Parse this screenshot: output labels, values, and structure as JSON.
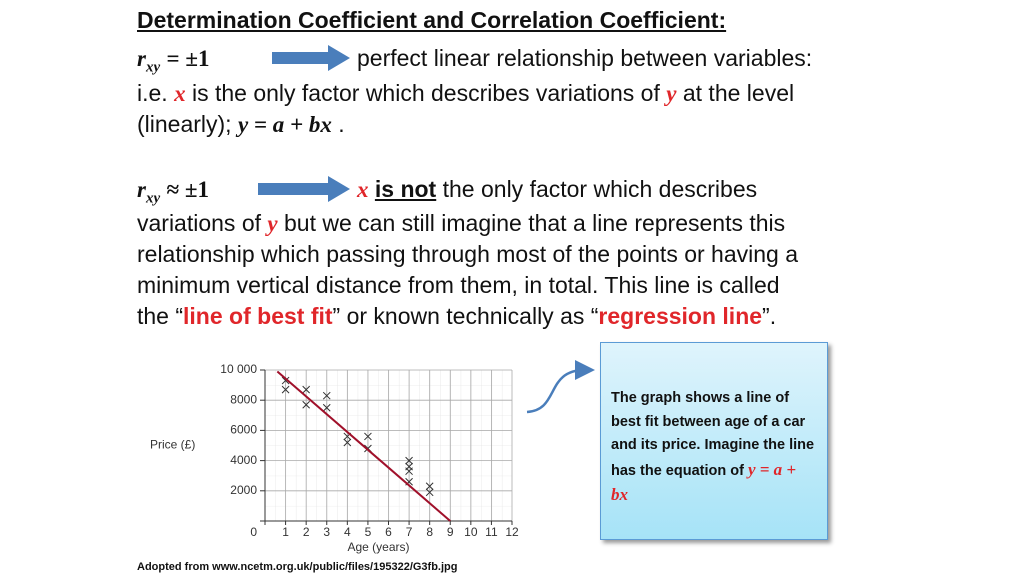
{
  "title": "Determination Coefficient and Correlation Coefficient:",
  "case1": {
    "symbol": "r",
    "subscript": "xy",
    "relation": "= ±1",
    "meaning": "perfect linear relationship between variables:",
    "line2": [
      "i.e. ",
      "x",
      " is the only factor which describes variations of ",
      "y",
      " at the level"
    ],
    "line3": [
      "(linearly); ",
      "y = a + bx",
      " ."
    ]
  },
  "case2": {
    "symbol": "r",
    "subscript": "xy",
    "relation": "≈ ±1",
    "meaning": [
      "x",
      "is not",
      "the only factor which describes"
    ],
    "lines": [
      [
        "variations of ",
        "y",
        " but we can still imagine that a line represents this"
      ],
      [
        "relationship which passing through most of the points or having a"
      ],
      [
        "minimum vertical distance from them, in total. This line is called"
      ],
      [
        "the “",
        "line of best fit",
        "” or known technically as “",
        "regression line",
        "”."
      ]
    ]
  },
  "callout": [
    "The graph shows a line of best fit between age of a car and its price. Imagine the line has the equation of ",
    "y = a + bx"
  ],
  "source": "Adopted from www.ncetm.org.uk/public/files/195322/G3fb.jpg",
  "chart_data": {
    "type": "scatter",
    "xlabel": "Age (years)",
    "ylabel": "Price (£)",
    "xlim": [
      0,
      12
    ],
    "xticks": [
      0,
      1,
      2,
      3,
      4,
      5,
      6,
      7,
      8,
      9,
      10,
      11,
      12
    ],
    "ylim": [
      0,
      10000
    ],
    "yticks": [
      0,
      2000,
      4000,
      6000,
      8000,
      {
        "value": 10000,
        "label": "10 000"
      }
    ],
    "grid": true,
    "color": "#333333",
    "x": [
      1,
      1,
      2,
      2,
      3,
      3,
      4,
      4,
      5,
      5,
      7,
      7,
      7,
      7,
      8,
      8
    ],
    "values": [
      8700,
      9300,
      8700,
      7700,
      8300,
      7500,
      5600,
      5200,
      5600,
      4800,
      4000,
      3600,
      3300,
      2600,
      2300,
      1900
    ],
    "fit_line": {
      "color": "#a0102a",
      "x": [
        0.6,
        9
      ],
      "values": [
        9900,
        0
      ]
    }
  }
}
